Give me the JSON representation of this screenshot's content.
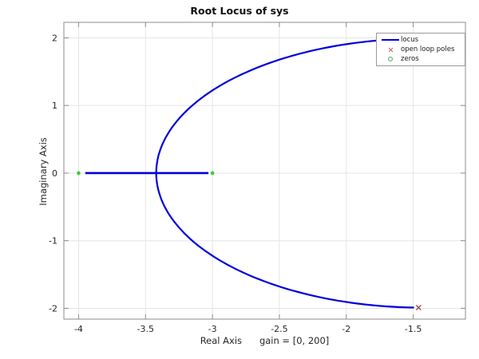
{
  "figure": {
    "background": "#ffffff",
    "title": "Root Locus of sys"
  },
  "legend": {
    "position": "top-right",
    "items": [
      {
        "label": "locus",
        "marker": "line",
        "color": "#0000dd"
      },
      {
        "label": "open loop poles",
        "marker": "x",
        "color": "#c06666"
      },
      {
        "label": "zeros",
        "marker": "circle",
        "color": "#5aa878"
      }
    ]
  },
  "chart_data": {
    "type": "line",
    "title": "Root Locus of sys",
    "xlabel": "Real Axis      gain = [0, 200]",
    "ylabel": "Imaginary Axis",
    "xlim": [
      -4.11,
      -1.11
    ],
    "ylim": [
      -2.16,
      2.23
    ],
    "xticks": [
      -4,
      -3.5,
      -3,
      -2.5,
      -2,
      -1.5
    ],
    "xtick_labels": [
      "-4",
      "-3.5",
      "-3",
      "-2.5",
      "-2",
      "-1.5"
    ],
    "yticks": [
      2,
      1,
      0,
      -1,
      -2
    ],
    "ytick_labels": [
      "2",
      "1",
      "0",
      "-1",
      "-2"
    ],
    "grid": true,
    "legend_position": "top-right",
    "gain_range": [
      0,
      200
    ],
    "series_names": [
      "locus",
      "open loop poles",
      "zeros"
    ],
    "open_loop_poles": [
      {
        "re": -1.46,
        "im": 1.99
      },
      {
        "re": -1.46,
        "im": -1.99
      }
    ],
    "zeros": [
      {
        "re": -4,
        "im": 0
      },
      {
        "re": -3,
        "im": 0
      }
    ],
    "locus": {
      "real_axis_segment": {
        "from": [
          -3.95,
          0
        ],
        "to": [
          -3.03,
          0
        ]
      },
      "complex_branch_circle": {
        "center": [
          -1.43,
          0
        ],
        "radius": 1.99,
        "start_angle_deg": 91,
        "end_angle_deg": 269
      },
      "breakin_point": [
        -3.42,
        0
      ]
    },
    "colors": {
      "locus": "#0000dd",
      "poles": "#a04040",
      "zeros": "#2fd22f",
      "grid": "#e5e5e5",
      "frame": "#8c8c8c",
      "tick_label": "#262626"
    }
  }
}
